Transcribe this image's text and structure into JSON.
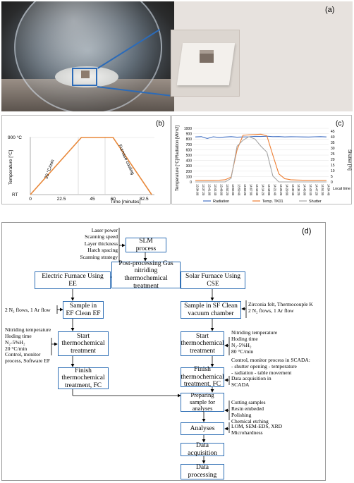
{
  "panel_a": {
    "label": "(a)"
  },
  "panel_b": {
    "label": "(b)",
    "chart_data": {
      "type": "line",
      "x": [
        0,
        37,
        47,
        60,
        88
      ],
      "series": [
        {
          "values": [
            0,
            900,
            900,
            900,
            0
          ]
        }
      ],
      "xticks": [
        "0",
        "22.5",
        "45",
        "60",
        "82.5"
      ],
      "xlabel": "Time [minutes]",
      "ylabel": "Temperature [°C]",
      "ytick_top": "900 °C",
      "ytick_bottom": "RT",
      "annotation_ramp": "20 °C/min",
      "annotation_cool": "Furnace cooling",
      "color": "#e8883a"
    }
  },
  "panel_c": {
    "label": "(c)",
    "chart_data": {
      "type": "line",
      "y_left_label": "Temperature [°C]/Radiation [W/m2]",
      "y_right_label": "Shutter [%]",
      "y_left_ticks": [
        "1000",
        "900",
        "800",
        "700",
        "600",
        "500",
        "400",
        "300",
        "200",
        "100",
        "0"
      ],
      "y_right_ticks": [
        "45",
        "40",
        "35",
        "30",
        "25",
        "20",
        "15",
        "10",
        "5",
        "0"
      ],
      "x_ticks": [
        "13:34:00",
        "13:37:20",
        "13:41:00",
        "13:44:40",
        "13:48:00",
        "13:52:20",
        "13:56:00",
        "13:59:40",
        "14:03:20",
        "14:07:00",
        "14:10:40",
        "14:14:20",
        "14:18:00",
        "14:21:40",
        "14:25:20",
        "14:29:00",
        "14:32:40",
        "14:36:20",
        "14:40:00",
        "14:43:40",
        "14:47:20",
        "14:51:00",
        "14:54:40"
      ],
      "x_label": "Local time",
      "legend": [
        "Radiation",
        "Temp. TK01",
        "Shutter"
      ],
      "series": [
        {
          "name": "Radiation",
          "color": "#4472c4",
          "values": [
            840,
            845,
            810,
            842,
            830,
            838,
            845,
            835,
            840,
            842,
            850,
            848,
            852,
            845,
            846,
            840,
            843,
            842,
            840,
            838,
            842,
            845,
            840
          ]
        },
        {
          "name": "Temp. TK01",
          "color": "#ed7d31",
          "values": [
            30,
            30,
            30,
            30,
            32,
            40,
            90,
            600,
            870,
            880,
            885,
            890,
            860,
            500,
            150,
            60,
            40,
            35,
            32,
            30,
            30,
            30,
            30
          ]
        },
        {
          "name": "Shutter",
          "color": "#a5a5a5",
          "values": [
            0,
            0,
            0,
            0,
            0,
            0,
            3,
            30,
            35,
            38,
            36,
            30,
            25,
            5,
            0,
            0,
            0,
            0,
            0,
            0,
            0,
            0,
            0
          ]
        }
      ]
    }
  },
  "panel_d": {
    "label": "(d)",
    "slm_params": [
      "Laser power",
      "Scanning speed",
      "Layer thickness",
      "Hatch spacing",
      "Scanning strategy"
    ],
    "slm_box": "SLM process",
    "post_box": "Post-processing Gas nitriding thermochemical treatment",
    "ef_box": "Electric Furnace Using EE",
    "sf_box": "Solar Furnace Using CSE",
    "ef_sample_box": "Sample in EF Clean EF",
    "ef_sample_note": "2 N₂ flows, 1 Ar flow",
    "sf_sample_box": "Sample in SF Clean vacuum chamber",
    "sf_sample_note": [
      "Zirconia felt, Thermocouple K",
      "2 N₂ flows, 1 Ar flow"
    ],
    "ef_start_box": "Start thermochemical treatment",
    "ef_start_note": [
      "Nitriding temperature",
      "Hoding time",
      "N₂-5%H₂",
      "20 °C/min",
      "",
      "Control, monitor",
      "process, Software EF"
    ],
    "sf_start_box": "Start thermochemical treatment",
    "sf_start_note": [
      "Nitriding temperature",
      "Hoding time",
      "N₂-5%H₂",
      "80 °C/min"
    ],
    "sf_control_note": [
      "Control, monitor process in SCADA:",
      "- shutter opening    - temperature",
      "- radiation             - table movement"
    ],
    "ef_finish_box": "Finish thermochemical treatment, FC",
    "sf_finish_box": "Finish thermochemical treatment, FC",
    "sf_finish_note": [
      "Data acquisition in",
      "SCADA"
    ],
    "prep_box": "Preparing sample for analyses",
    "prep_note": [
      "Cutting samples",
      "Resin embeded",
      "Polishing",
      "Chemical etching"
    ],
    "analyses_box": "Analyses",
    "analyses_note": [
      "LOM, SEM-EDS, XRD",
      "Microhardness"
    ],
    "acq_box": "Data acquisition",
    "proc_box": "Data processing"
  }
}
